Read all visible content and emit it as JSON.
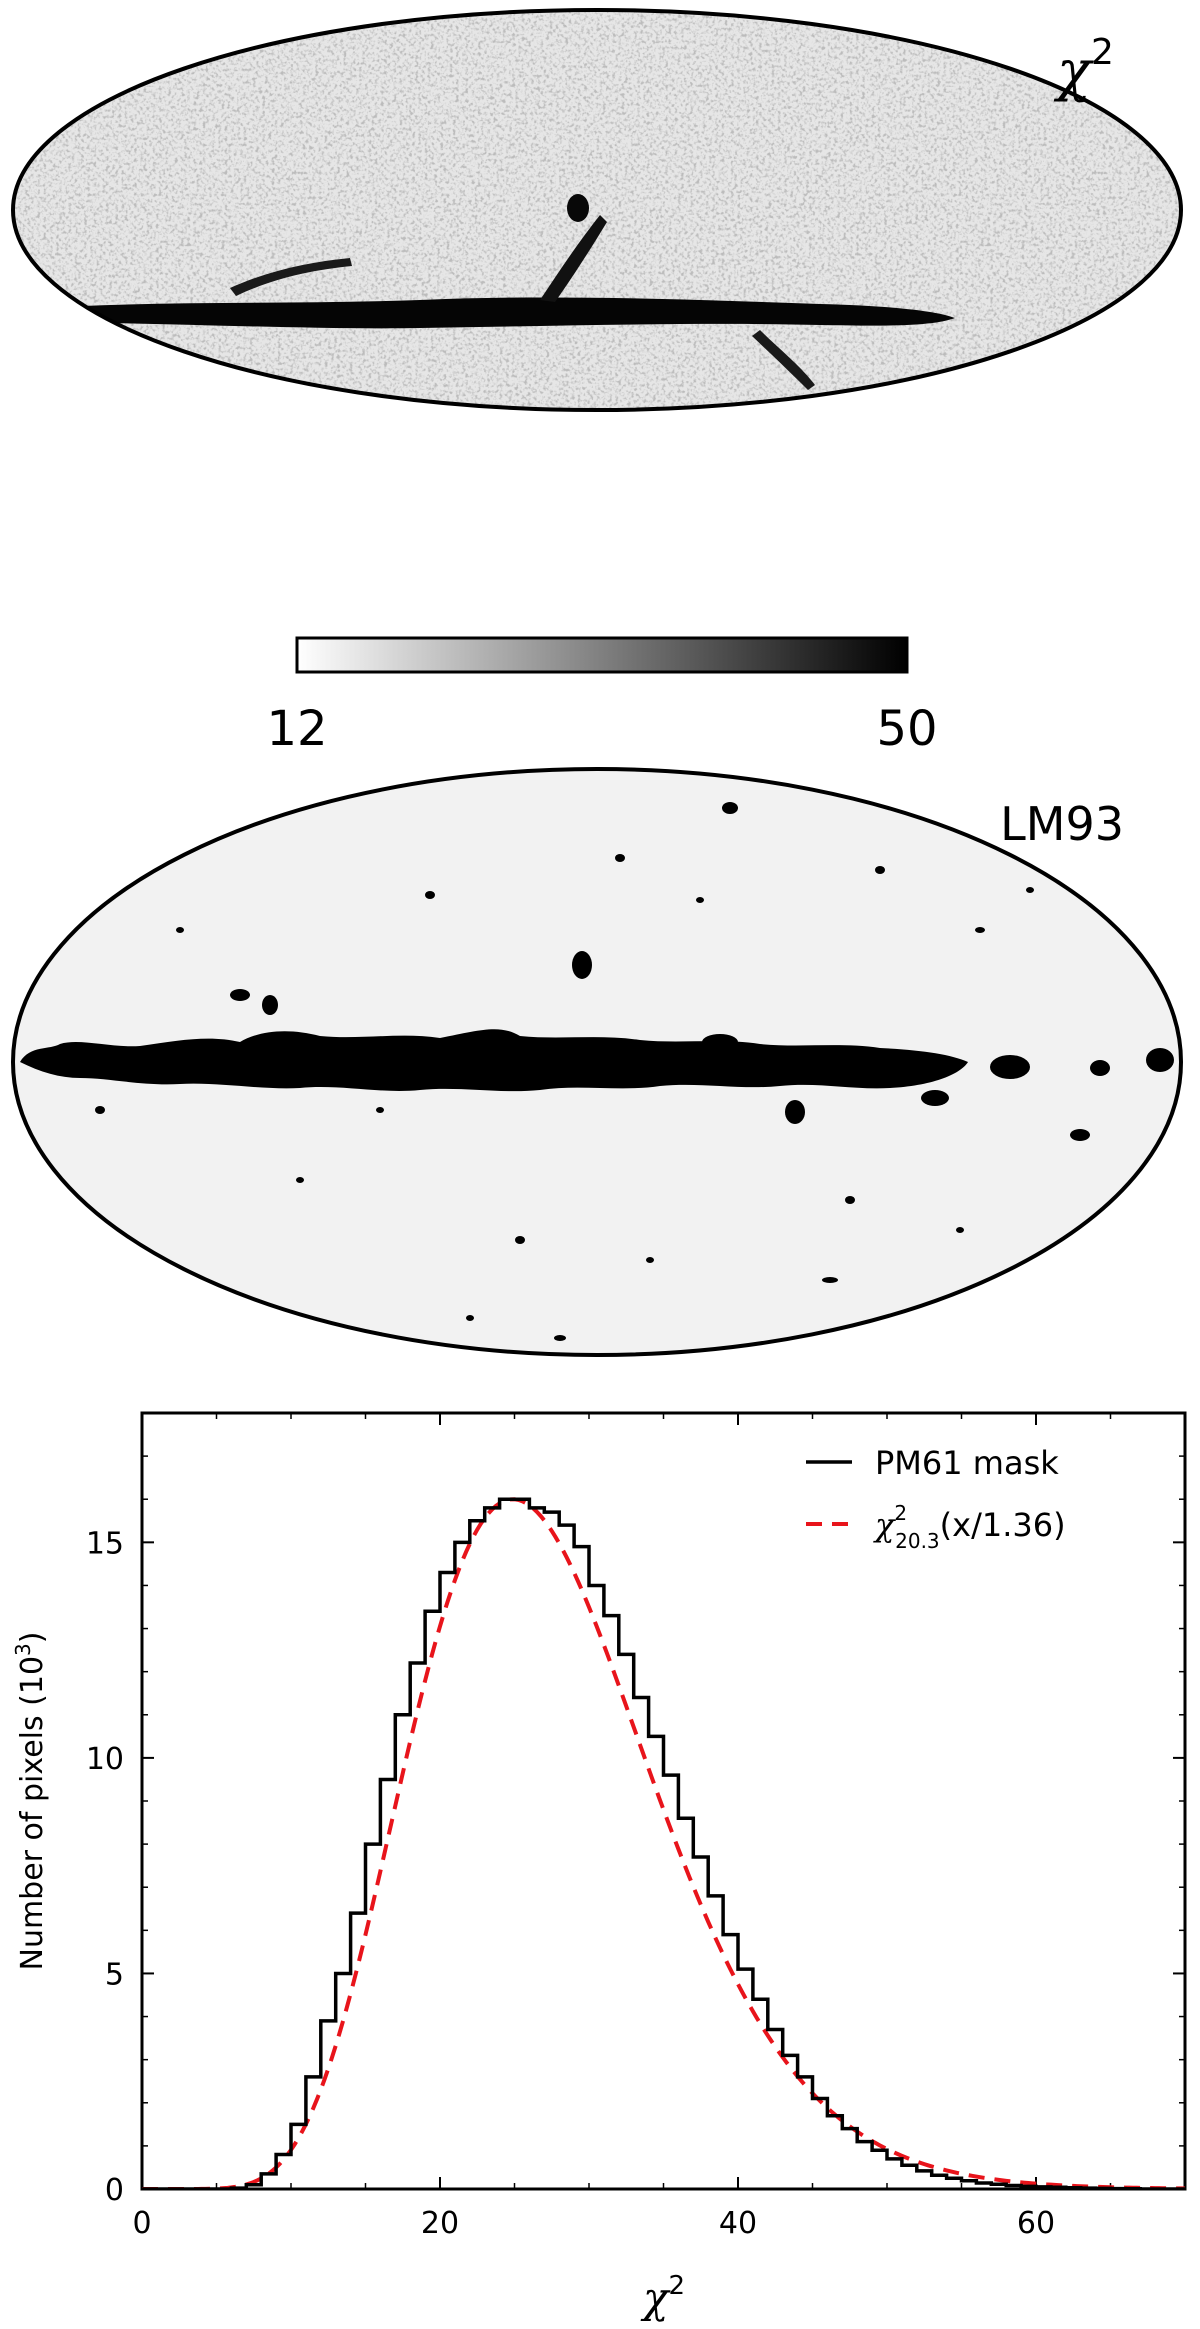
{
  "panels": {
    "chi2_map": {
      "label_symbol": "χ",
      "label_exponent": "2",
      "colorbar": {
        "min_label": "12",
        "max_label": "50",
        "min": 12,
        "max": 50,
        "colormap": "white-to-black"
      }
    },
    "mask_map": {
      "label": "LM93"
    }
  },
  "chart_data": {
    "type": "line",
    "title": "",
    "xlabel_symbol": "χ",
    "xlabel_exponent": "2",
    "ylabel_main": "Number of pixels (10",
    "ylabel_exponent": "3",
    "ylabel_close": ")",
    "xlim": [
      0,
      70
    ],
    "ylim": [
      0,
      18
    ],
    "xticks": [
      0,
      20,
      40,
      60
    ],
    "xtick_labels": [
      "0",
      "20",
      "40",
      "60"
    ],
    "yticks": [
      0,
      5,
      10,
      15
    ],
    "ytick_labels": [
      "0",
      "5",
      "10",
      "15"
    ],
    "legend_position": "top-right",
    "series": [
      {
        "name": "PM61 mask",
        "style": "step",
        "color": "#000000",
        "bin_width": 1,
        "bin_starts": [
          0,
          1,
          2,
          3,
          4,
          5,
          6,
          7,
          8,
          9,
          10,
          11,
          12,
          13,
          14,
          15,
          16,
          17,
          18,
          19,
          20,
          21,
          22,
          23,
          24,
          25,
          26,
          27,
          28,
          29,
          30,
          31,
          32,
          33,
          34,
          35,
          36,
          37,
          38,
          39,
          40,
          41,
          42,
          43,
          44,
          45,
          46,
          47,
          48,
          49,
          50,
          51,
          52,
          53,
          54,
          55,
          56,
          57,
          58,
          59,
          60,
          61,
          62,
          63,
          64,
          65,
          66,
          67,
          68,
          69
        ],
        "values": [
          0,
          0,
          0,
          0,
          0,
          0,
          0.02,
          0.1,
          0.35,
          0.8,
          1.5,
          2.6,
          3.9,
          5.0,
          6.4,
          8.0,
          9.5,
          11.0,
          12.2,
          13.4,
          14.3,
          15.0,
          15.5,
          15.8,
          16.0,
          16.0,
          15.8,
          15.7,
          15.4,
          14.9,
          14.0,
          13.3,
          12.4,
          11.4,
          10.5,
          9.6,
          8.6,
          7.7,
          6.8,
          5.9,
          5.1,
          4.4,
          3.7,
          3.1,
          2.6,
          2.1,
          1.7,
          1.4,
          1.1,
          0.9,
          0.7,
          0.55,
          0.42,
          0.32,
          0.25,
          0.19,
          0.14,
          0.11,
          0.08,
          0.06,
          0.05,
          0.04,
          0.03,
          0.02,
          0.015,
          0.01,
          0.005,
          0,
          0,
          0
        ]
      },
      {
        "name_symbol": "χ",
        "name_subscript": "20.3",
        "name_superscript": "2",
        "name_argument": "(x/1.36)",
        "style": "dashed",
        "color": "#e8141b",
        "dof": 20.3,
        "scale": 1.36
      }
    ]
  }
}
